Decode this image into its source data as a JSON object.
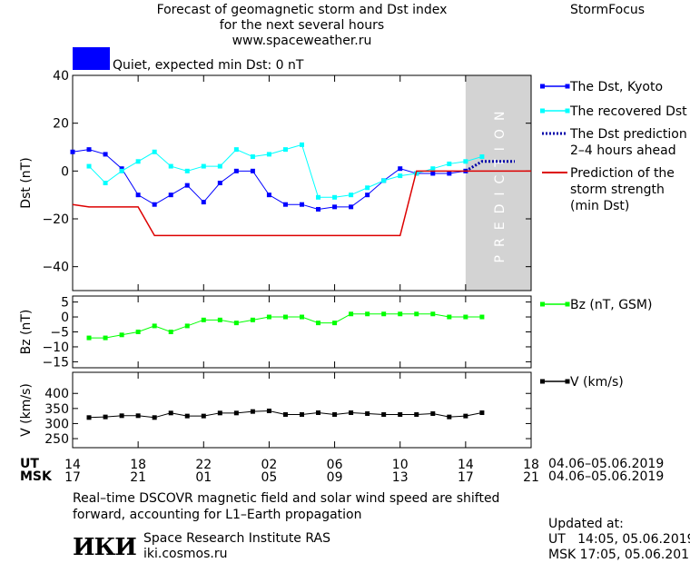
{
  "header": {
    "title_line1": "Forecast of geomagnetic storm and Dst index",
    "title_line2": "for the next several hours",
    "title_line3": "www.spaceweather.ru",
    "brand": "StormFocus",
    "status_text": "Quiet, expected min Dst: 0 nT",
    "status_color": "#0000ff"
  },
  "time_axis": {
    "ut_label": "UT",
    "msk_label": "MSK",
    "ut_ticks": [
      "14",
      "18",
      "22",
      "02",
      "06",
      "10",
      "14",
      "18"
    ],
    "msk_ticks": [
      "17",
      "21",
      "01",
      "05",
      "09",
      "13",
      "17",
      "21"
    ],
    "ut_date_range": "04.06–05.06.2019",
    "msk_date_range": "04.06–05.06.2019",
    "tick_hours": [
      0,
      4,
      8,
      12,
      16,
      20,
      24,
      28
    ],
    "range_hours": [
      0,
      28
    ]
  },
  "chart_data": [
    {
      "type": "line",
      "ylabel": "Dst (nT)",
      "ylim": [
        -50,
        40
      ],
      "yticks": [
        "40",
        "20",
        "0",
        "−20",
        "−40"
      ],
      "ytick_values": [
        40,
        20,
        0,
        -20,
        -40
      ],
      "prediction_band_label": "PREDICTION",
      "prediction_band_hours": [
        24,
        28
      ],
      "series": [
        {
          "name": "The Dst, Kyoto",
          "color": "#0000ff",
          "x": [
            0,
            1,
            2,
            3,
            4,
            5,
            6,
            7,
            8,
            9,
            10,
            11,
            12,
            13,
            14,
            15,
            16,
            17,
            18,
            19,
            20,
            21,
            22,
            23,
            24
          ],
          "values": [
            8,
            9,
            7,
            1,
            -10,
            -14,
            -10,
            -6,
            -13,
            -5,
            0,
            0,
            -10,
            -14,
            -14,
            -16,
            -15,
            -15,
            -10,
            -4,
            1,
            -1,
            -1,
            -1,
            0
          ]
        },
        {
          "name": "The recovered Dst",
          "color": "#00ffff",
          "x": [
            1,
            2,
            3,
            4,
            5,
            6,
            7,
            8,
            9,
            10,
            11,
            12,
            13,
            14,
            15,
            16,
            17,
            18,
            19,
            20,
            21,
            22,
            23,
            24,
            25
          ],
          "values": [
            2,
            -5,
            0,
            4,
            8,
            2,
            0,
            2,
            2,
            9,
            6,
            7,
            9,
            11,
            -11,
            -11,
            -10,
            -7,
            -4,
            -2,
            -1,
            1,
            3,
            4,
            6
          ]
        },
        {
          "name": "The Dst prediction\n2–4 hours ahead",
          "color": "#0000aa",
          "x": [
            24,
            25,
            26,
            27
          ],
          "values": [
            0,
            4,
            4,
            4
          ]
        },
        {
          "name": "Prediction of the\nstorm strength\n(min Dst)",
          "color": "#dd0000",
          "x": [
            0,
            1,
            4,
            5,
            20,
            21,
            28
          ],
          "values": [
            -14,
            -15,
            -15,
            -27,
            -27,
            0,
            0
          ]
        }
      ]
    },
    {
      "type": "line",
      "ylabel": "Bz (nT)",
      "ylim": [
        -17,
        7
      ],
      "yticks": [
        "5",
        "0",
        "−5",
        "−10",
        "−15"
      ],
      "ytick_values": [
        5,
        0,
        -5,
        -10,
        -15
      ],
      "series": [
        {
          "name": "Bz (nT, GSM)",
          "color": "#00ff00",
          "x": [
            1,
            2,
            3,
            4,
            5,
            6,
            7,
            8,
            9,
            10,
            11,
            12,
            13,
            14,
            15,
            16,
            17,
            18,
            19,
            20,
            21,
            22,
            23,
            24,
            25
          ],
          "values": [
            -7,
            -7,
            -6,
            -5,
            -3,
            -5,
            -3,
            -1,
            -1,
            -2,
            -1,
            0,
            0,
            0,
            -2,
            -2,
            1,
            1,
            1,
            1,
            1,
            1,
            0,
            0,
            0
          ]
        }
      ]
    },
    {
      "type": "line",
      "ylabel": "V (km/s)",
      "ylim": [
        220,
        470
      ],
      "yticks": [
        "400",
        "350",
        "300",
        "250"
      ],
      "ytick_values": [
        400,
        350,
        300,
        250
      ],
      "series": [
        {
          "name": "V (km/s)",
          "color": "#000000",
          "x": [
            1,
            2,
            3,
            4,
            5,
            6,
            7,
            8,
            9,
            10,
            11,
            12,
            13,
            14,
            15,
            16,
            17,
            18,
            19,
            20,
            21,
            22,
            23,
            24,
            25
          ],
          "values": [
            320,
            322,
            326,
            326,
            320,
            335,
            325,
            325,
            335,
            335,
            340,
            342,
            330,
            330,
            336,
            330,
            336,
            333,
            330,
            330,
            330,
            333,
            322,
            325,
            336
          ]
        }
      ]
    }
  ],
  "footer": {
    "note_line1": "Real–time DSCOVR magnetic field and solar wind speed are shifted",
    "note_line2": "forward, accounting for L1–Earth propagation",
    "logo": "ИКИ",
    "institute": "Space Research Institute RAS",
    "site": "iki.cosmos.ru",
    "updated_label": "Updated at:",
    "updated_ut": "UT   14:05, 05.06.2019",
    "updated_msk": "MSK 17:05, 05.06.2019"
  }
}
